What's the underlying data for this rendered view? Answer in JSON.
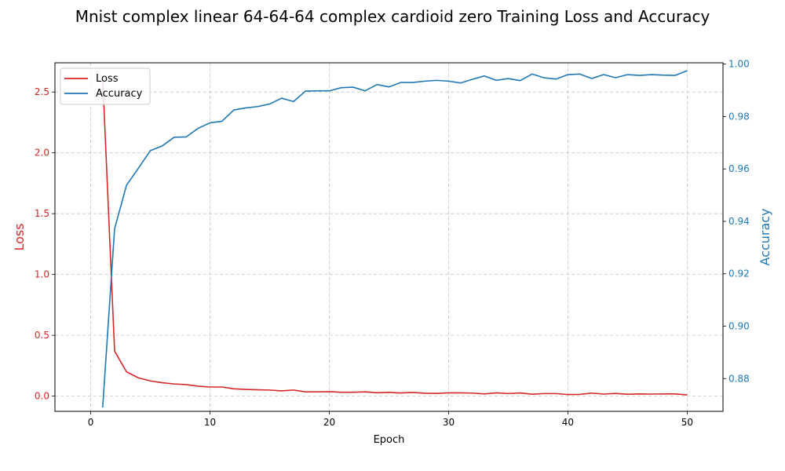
{
  "chart_data": {
    "type": "line",
    "title": "Mnist complex linear 64-64-64 complex cardioid zero Training Loss and Accuracy",
    "xlabel": "Epoch",
    "ylabel_left": "Loss",
    "ylabel_right": "Accuracy",
    "xlim": [
      -3,
      53
    ],
    "ylim_left": [
      -0.125,
      2.74
    ],
    "ylim_right": [
      0.8675,
      1.0005
    ],
    "x_ticks": [
      0,
      10,
      20,
      30,
      40,
      50
    ],
    "y_ticks_left": [
      0.0,
      0.5,
      1.0,
      1.5,
      2.0,
      2.5
    ],
    "y_ticks_right": [
      0.88,
      0.9,
      0.92,
      0.94,
      0.96,
      0.98,
      1.0
    ],
    "x_tick_labels": [
      "0",
      "10",
      "20",
      "30",
      "40",
      "50"
    ],
    "y_tick_labels_left": [
      "0.0",
      "0.5",
      "1.0",
      "1.5",
      "2.0",
      "2.5"
    ],
    "y_tick_labels_right": [
      "0.88",
      "0.90",
      "0.92",
      "0.94",
      "0.96",
      "0.98",
      "1.00"
    ],
    "grid": true,
    "legend_position": "upper-left",
    "colors": {
      "loss": "#d62728",
      "accuracy": "#1f77b4"
    },
    "series": [
      {
        "name": "Loss",
        "axis": "left",
        "x": [
          1,
          2,
          3,
          4,
          5,
          6,
          7,
          8,
          9,
          10,
          11,
          12,
          13,
          14,
          15,
          16,
          17,
          18,
          19,
          20,
          21,
          22,
          23,
          24,
          25,
          26,
          27,
          28,
          29,
          30,
          31,
          32,
          33,
          34,
          35,
          36,
          37,
          38,
          39,
          40,
          41,
          42,
          43,
          44,
          45,
          46,
          47,
          48,
          49,
          50
        ],
        "values": [
          2.62,
          0.37,
          0.2,
          0.15,
          0.125,
          0.11,
          0.1,
          0.095,
          0.082,
          0.075,
          0.075,
          0.06,
          0.055,
          0.052,
          0.05,
          0.043,
          0.05,
          0.035,
          0.035,
          0.037,
          0.032,
          0.032,
          0.035,
          0.028,
          0.031,
          0.026,
          0.03,
          0.024,
          0.022,
          0.027,
          0.027,
          0.025,
          0.018,
          0.027,
          0.021,
          0.026,
          0.016,
          0.021,
          0.021,
          0.013,
          0.014,
          0.025,
          0.017,
          0.022,
          0.016,
          0.018,
          0.017,
          0.018,
          0.018,
          0.01
        ]
      },
      {
        "name": "Accuracy",
        "axis": "right",
        "x": [
          1,
          2,
          3,
          4,
          5,
          6,
          7,
          8,
          9,
          10,
          11,
          12,
          13,
          14,
          15,
          16,
          17,
          18,
          19,
          20,
          21,
          22,
          23,
          24,
          25,
          26,
          27,
          28,
          29,
          30,
          31,
          32,
          33,
          34,
          35,
          36,
          37,
          38,
          39,
          40,
          41,
          42,
          43,
          44,
          45,
          46,
          47,
          48,
          49,
          50
        ],
        "values": [
          0.869,
          0.9372,
          0.9538,
          0.9603,
          0.967,
          0.9688,
          0.9721,
          0.9722,
          0.9755,
          0.9776,
          0.9782,
          0.9825,
          0.9833,
          0.9838,
          0.9848,
          0.987,
          0.9857,
          0.9897,
          0.9898,
          0.9898,
          0.991,
          0.9912,
          0.9898,
          0.9922,
          0.9913,
          0.993,
          0.993,
          0.9935,
          0.9938,
          0.9935,
          0.9928,
          0.9942,
          0.9955,
          0.9938,
          0.9945,
          0.9937,
          0.9962,
          0.9948,
          0.9943,
          0.996,
          0.9962,
          0.9945,
          0.996,
          0.9948,
          0.996,
          0.9957,
          0.996,
          0.9958,
          0.9957,
          0.9975
        ]
      }
    ]
  }
}
